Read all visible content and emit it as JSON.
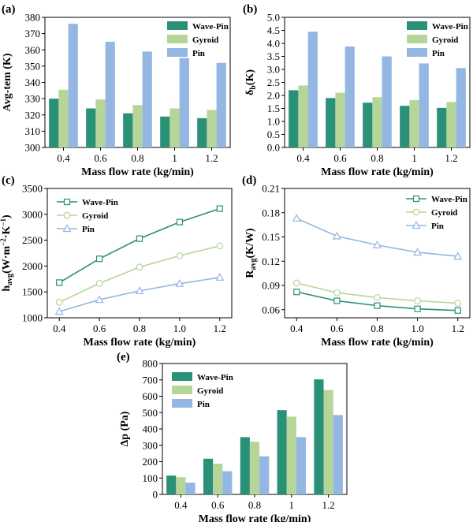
{
  "colors": {
    "Wave-Pin": "#2a9078",
    "Gyroid": "#b6d598",
    "Pin": "#93b7e2"
  },
  "chart_data": [
    {
      "id": "a",
      "panel_label": "(a)",
      "type": "bar",
      "categories": [
        "0.4",
        "0.6",
        "0.8",
        "1",
        "1.2"
      ],
      "series": [
        {
          "name": "Wave-Pin",
          "values": [
            330,
            324,
            321,
            319,
            318
          ]
        },
        {
          "name": "Gyroid",
          "values": [
            335.5,
            329.5,
            326,
            324,
            323
          ]
        },
        {
          "name": "Pin",
          "values": [
            376,
            365,
            359,
            355,
            352
          ]
        }
      ],
      "xlabel": "Mass flow rate (kg/min)",
      "ylabel": "Avg-tem (K)",
      "ylim": [
        300,
        380
      ],
      "yticks": [
        "300",
        "310",
        "320",
        "330",
        "340",
        "350",
        "360",
        "370",
        "380"
      ]
    },
    {
      "id": "b",
      "panel_label": "(b)",
      "type": "bar",
      "categories": [
        "0.4",
        "0.6",
        "0.8",
        "1",
        "1.2"
      ],
      "series": [
        {
          "name": "Wave-Pin",
          "values": [
            2.2,
            1.9,
            1.72,
            1.6,
            1.52
          ]
        },
        {
          "name": "Gyroid",
          "values": [
            2.38,
            2.1,
            1.93,
            1.82,
            1.75
          ]
        },
        {
          "name": "Pin",
          "values": [
            4.45,
            3.88,
            3.5,
            3.23,
            3.05
          ]
        }
      ],
      "xlabel": "Mass flow rate (kg/min)",
      "ylabel": "δb(K)",
      "ylim": [
        0,
        5
      ],
      "yticks": [
        "0.0",
        "0.5",
        "1.0",
        "1.5",
        "2.0",
        "2.5",
        "3.0",
        "3.5",
        "4.0",
        "4.5",
        "5.0"
      ]
    },
    {
      "id": "c",
      "panel_label": "(c)",
      "type": "line",
      "x": [
        0.4,
        0.6,
        0.8,
        1.0,
        1.2
      ],
      "xticks": [
        "0.4",
        "0.6",
        "0.8",
        "1.0",
        "1.2"
      ],
      "series": [
        {
          "name": "Wave-Pin",
          "marker": "square",
          "values": [
            1680,
            2140,
            2530,
            2850,
            3110
          ]
        },
        {
          "name": "Gyroid",
          "marker": "circle",
          "values": [
            1300,
            1665,
            1980,
            2200,
            2390
          ]
        },
        {
          "name": "Pin",
          "marker": "triangle",
          "values": [
            1120,
            1350,
            1520,
            1660,
            1780
          ]
        }
      ],
      "xlabel": "Mass flow rate (kg/min)",
      "ylabel": "havg(W·m−2·K−1)",
      "ylim": [
        1000,
        3500
      ],
      "yticks": [
        "1000",
        "1500",
        "2000",
        "2500",
        "3000",
        "3500"
      ]
    },
    {
      "id": "d",
      "panel_label": "(d)",
      "type": "line",
      "x": [
        0.4,
        0.6,
        0.8,
        1.0,
        1.2
      ],
      "xticks": [
        "0.4",
        "0.6",
        "0.8",
        "1.0",
        "1.2"
      ],
      "series": [
        {
          "name": "Wave-Pin",
          "marker": "square",
          "values": [
            0.082,
            0.071,
            0.065,
            0.061,
            0.059
          ]
        },
        {
          "name": "Gyroid",
          "marker": "circle",
          "values": [
            0.093,
            0.081,
            0.075,
            0.071,
            0.068
          ]
        },
        {
          "name": "Pin",
          "marker": "triangle",
          "values": [
            0.173,
            0.151,
            0.14,
            0.131,
            0.126
          ]
        }
      ],
      "xlabel": "Mass flow rate (kg/min)",
      "ylabel": "Ravg(K/W)",
      "ylim": [
        0.05,
        0.21
      ],
      "yticks": [
        "0.06",
        "0.09",
        "0.12",
        "0.15",
        "0.18",
        "0.21"
      ]
    },
    {
      "id": "e",
      "panel_label": "(e)",
      "type": "bar",
      "categories": [
        "0.4",
        "0.6",
        "0.8",
        "1",
        "1.2"
      ],
      "series": [
        {
          "name": "Wave-Pin",
          "values": [
            115,
            218,
            350,
            515,
            703
          ]
        },
        {
          "name": "Gyroid",
          "values": [
            105,
            188,
            322,
            475,
            638
          ]
        },
        {
          "name": "Pin",
          "values": [
            72,
            142,
            233,
            350,
            485
          ]
        }
      ],
      "xlabel": "Mass flow rate (kg/min)",
      "ylabel": "Δp (Pa)",
      "ylim": [
        0,
        800
      ],
      "yticks": [
        "0",
        "100",
        "200",
        "300",
        "400",
        "500",
        "600",
        "700",
        "800"
      ]
    }
  ]
}
